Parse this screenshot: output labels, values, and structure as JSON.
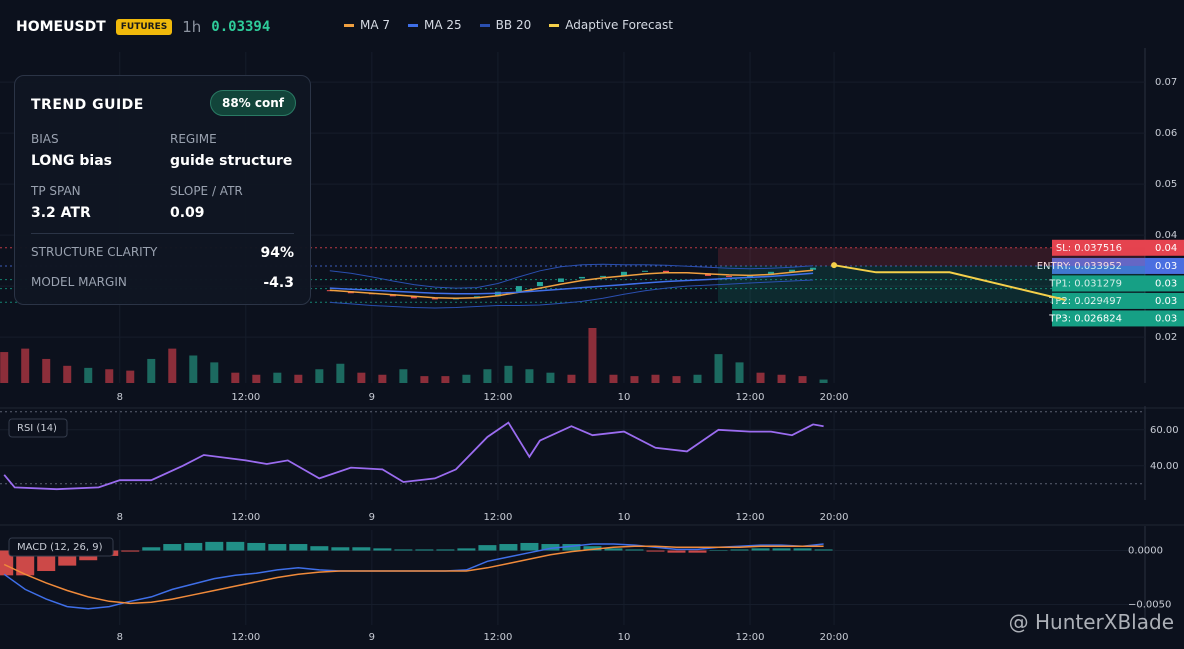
{
  "header": {
    "symbol": "HOMEUSDT",
    "badge": "FUTURES",
    "interval": "1h",
    "price": "0.03394"
  },
  "guide": {
    "title": "TREND GUIDE",
    "confidence": "88% conf",
    "fields": [
      {
        "label": "BIAS",
        "value": "LONG bias"
      },
      {
        "label": "REGIME",
        "value": "guide structure"
      },
      {
        "label": "TP SPAN",
        "value": "3.2 ATR"
      },
      {
        "label": "SLOPE / ATR",
        "value": "0.09"
      }
    ],
    "metrics": [
      {
        "label": "STRUCTURE CLARITY",
        "value": "94%"
      },
      {
        "label": "MODEL MARGIN",
        "value": "-4.3"
      }
    ]
  },
  "watermark": "@ HunterXBlade",
  "chart_data": [
    {
      "type": "candlestick",
      "xlim": [
        -11.4,
        97.6
      ],
      "ylim": [
        0.011,
        0.0759
      ],
      "grid": true,
      "xticks": [
        {
          "value": 0,
          "label": "8"
        },
        {
          "value": 12,
          "label": "12:00"
        },
        {
          "value": 24,
          "label": "9"
        },
        {
          "value": 36,
          "label": "12:00"
        },
        {
          "value": 48,
          "label": "10"
        },
        {
          "value": 60,
          "label": "12:00"
        },
        {
          "value": 68,
          "label": "20:00"
        }
      ],
      "yticks": [
        0.07,
        0.06,
        0.05,
        0.04,
        0.03,
        0.02
      ],
      "x": [
        20,
        22,
        24,
        26,
        28,
        30,
        32,
        34,
        36,
        38,
        40,
        42,
        44,
        46,
        48,
        50,
        52,
        54,
        56,
        58,
        60,
        62,
        64,
        66
      ],
      "open": [
        0.0292,
        0.029,
        0.0286,
        0.0284,
        0.028,
        0.0276,
        0.0274,
        0.0276,
        0.028,
        0.0289,
        0.03,
        0.0308,
        0.0315,
        0.0318,
        0.032,
        0.0328,
        0.033,
        0.0327,
        0.0325,
        0.032,
        0.0318,
        0.0322,
        0.0328,
        0.0332
      ],
      "close": [
        0.029,
        0.0286,
        0.0284,
        0.028,
        0.0276,
        0.0274,
        0.0276,
        0.028,
        0.0289,
        0.03,
        0.0308,
        0.0315,
        0.0318,
        0.032,
        0.0328,
        0.033,
        0.0327,
        0.0325,
        0.032,
        0.0318,
        0.0322,
        0.0328,
        0.0332,
        0.0336
      ],
      "colors": {
        "up": "#26a69a",
        "down": "#ef5350"
      },
      "series": [
        {
          "name": "MA 7",
          "color": "#f0a040",
          "values": [
            0.0292,
            0.0289,
            0.0286,
            0.0283,
            0.028,
            0.0277,
            0.0276,
            0.0277,
            0.0281,
            0.0288,
            0.0296,
            0.0304,
            0.0311,
            0.0316,
            0.032,
            0.0324,
            0.0326,
            0.0326,
            0.0324,
            0.0322,
            0.0321,
            0.0323,
            0.0327,
            0.0331
          ]
        },
        {
          "name": "MA 25",
          "color": "#3f6fe8",
          "values": [
            0.0296,
            0.0294,
            0.0292,
            0.029,
            0.0288,
            0.0286,
            0.0285,
            0.0285,
            0.0286,
            0.0288,
            0.0291,
            0.0294,
            0.0297,
            0.03,
            0.0303,
            0.0306,
            0.0309,
            0.0311,
            0.0313,
            0.0315,
            0.0317,
            0.0319,
            0.0322,
            0.0325
          ]
        },
        {
          "name": "BB 20",
          "color": "#2a4fb0",
          "values": [
            0.033,
            0.0325,
            0.0318,
            0.031,
            0.0303,
            0.0298,
            0.0296,
            0.0297,
            0.0305,
            0.0318,
            0.033,
            0.0338,
            0.0342,
            0.0343,
            0.0342,
            0.0342,
            0.0341,
            0.0339,
            0.0337,
            0.0335,
            0.0334,
            0.0335,
            0.0337,
            0.034
          ],
          "lower": [
            0.0268,
            0.0265,
            0.0262,
            0.026,
            0.0258,
            0.0257,
            0.0258,
            0.026,
            0.0262,
            0.0262,
            0.0263,
            0.0266,
            0.027,
            0.0276,
            0.0284,
            0.0291,
            0.0296,
            0.03,
            0.0302,
            0.0304,
            0.0306,
            0.0308,
            0.031,
            0.0312
          ]
        },
        {
          "name": "Adaptive Forecast",
          "color": "#f5d04a",
          "x": [
            68,
            72,
            79,
            90
          ],
          "values": [
            0.0341,
            0.0327,
            0.0327,
            0.0273
          ]
        }
      ],
      "levels": [
        {
          "label": "SL: 0.037516",
          "value": 0.037516,
          "axis_label": "0.04",
          "color": "#e5434f"
        },
        {
          "label": "ENTRY: 0.033952",
          "value": 0.033952,
          "axis_label": "0.03",
          "color": "#4a6fe0"
        },
        {
          "label": "TP1: 0.031279",
          "value": 0.031279,
          "axis_label": "0.03",
          "color": "#16a085"
        },
        {
          "label": "TP2: 0.029497",
          "value": 0.029497,
          "axis_label": "0.03",
          "color": "#16a085"
        },
        {
          "label": "TP3: 0.026824",
          "value": 0.026824,
          "axis_label": "0.03",
          "color": "#16a085"
        }
      ],
      "volume": {
        "x": [
          -11,
          -9,
          -7,
          -5,
          -3,
          -1,
          1,
          3,
          5,
          7,
          9,
          11,
          13,
          15,
          17,
          19,
          21,
          23,
          25,
          27,
          29,
          31,
          33,
          35,
          37,
          39,
          41,
          43,
          45,
          47,
          49,
          51,
          53,
          55,
          57,
          59,
          61,
          63,
          65,
          67
        ],
        "values": [
          45,
          50,
          35,
          25,
          22,
          20,
          18,
          35,
          50,
          40,
          30,
          15,
          12,
          15,
          12,
          20,
          28,
          15,
          12,
          20,
          10,
          10,
          12,
          20,
          25,
          20,
          15,
          12,
          80,
          12,
          10,
          12,
          10,
          12,
          42,
          30,
          15,
          12,
          10,
          5
        ],
        "up": [
          false,
          false,
          false,
          false,
          true,
          false,
          false,
          true,
          false,
          true,
          true,
          false,
          false,
          true,
          false,
          true,
          true,
          false,
          false,
          true,
          false,
          false,
          true,
          true,
          true,
          true,
          true,
          false,
          false,
          false,
          false,
          false,
          false,
          true,
          true,
          true,
          false,
          false,
          false,
          true
        ],
        "colors": {
          "up": "#1c6a60",
          "down": "#8c2e3a"
        }
      }
    },
    {
      "type": "line",
      "title": "RSI (14)",
      "xlim": [
        -11.4,
        97.6
      ],
      "ylim": [
        21,
        71
      ],
      "bands": [
        30,
        70
      ],
      "xticks": [
        {
          "value": 0,
          "label": "8"
        },
        {
          "value": 12,
          "label": "12:00"
        },
        {
          "value": 24,
          "label": "9"
        },
        {
          "value": 36,
          "label": "12:00"
        },
        {
          "value": 48,
          "label": "10"
        },
        {
          "value": 60,
          "label": "12:00"
        },
        {
          "value": 68,
          "label": "20:00"
        }
      ],
      "yticks": [
        {
          "value": 60,
          "label": "60.00"
        },
        {
          "value": 40,
          "label": "40.00"
        }
      ],
      "x": [
        -11,
        -10,
        -6,
        -2,
        0,
        3,
        6,
        8,
        12,
        14,
        16,
        19,
        22,
        25,
        27,
        30,
        32,
        35,
        37,
        39,
        40,
        43,
        45,
        48,
        51,
        54,
        57,
        60,
        62,
        64,
        66,
        67
      ],
      "series": [
        {
          "color": "#9b6cf0",
          "values": [
            35,
            28,
            27,
            28,
            32,
            32,
            40,
            46,
            43,
            41,
            43,
            33,
            39,
            38,
            31,
            33,
            38,
            56,
            64,
            45,
            54,
            62,
            57,
            59,
            50,
            48,
            60,
            59,
            59,
            57,
            63,
            62
          ]
        }
      ]
    },
    {
      "type": "macd",
      "title": "MACD (12, 26, 9)",
      "xlim": [
        -11.4,
        97.6
      ],
      "ylim": [
        -0.0069,
        0.0019
      ],
      "xticks": [
        {
          "value": 0,
          "label": "8"
        },
        {
          "value": 12,
          "label": "12:00"
        },
        {
          "value": 24,
          "label": "9"
        },
        {
          "value": 36,
          "label": "12:00"
        },
        {
          "value": 48,
          "label": "10"
        },
        {
          "value": 60,
          "label": "12:00"
        },
        {
          "value": 68,
          "label": "20:00"
        }
      ],
      "yticks": [
        {
          "value": 0,
          "label": "0.0000"
        },
        {
          "value": -0.005,
          "label": "−0.0050"
        }
      ],
      "x": [
        -11,
        -9,
        -7,
        -5,
        -3,
        -1,
        1,
        3,
        5,
        7,
        9,
        11,
        13,
        15,
        17,
        19,
        21,
        23,
        25,
        27,
        29,
        31,
        33,
        35,
        37,
        39,
        41,
        43,
        45,
        47,
        49,
        51,
        53,
        55,
        57,
        59,
        61,
        63,
        65,
        67
      ],
      "histogram": [
        -0.0023,
        -0.0023,
        -0.0019,
        -0.0014,
        -0.0009,
        -0.0005,
        -0.0001,
        0.0003,
        0.0006,
        0.0007,
        0.0008,
        0.0008,
        0.0007,
        0.0006,
        0.0006,
        0.0004,
        0.0003,
        0.0003,
        0.0002,
        0.0001,
        0.0001,
        0.0001,
        0.0002,
        0.0005,
        0.0006,
        0.0007,
        0.0006,
        0.0006,
        0.0004,
        0.0002,
        0.0001,
        -0.0001,
        -0.0002,
        -0.0002,
        0,
        0.0001,
        0.0002,
        0.0002,
        0.0002,
        0.0001
      ],
      "histogram_colors": {
        "up": "#26a69a",
        "down": "#ef5350"
      },
      "series": [
        {
          "color": "#3f6fe8",
          "values": [
            -0.0022,
            -0.0036,
            -0.0045,
            -0.0052,
            -0.0054,
            -0.0052,
            -0.0047,
            -0.0043,
            -0.0036,
            -0.0031,
            -0.0026,
            -0.0023,
            -0.0021,
            -0.0018,
            -0.0016,
            -0.0018,
            -0.0019,
            -0.0019,
            -0.0019,
            -0.0019,
            -0.0019,
            -0.0019,
            -0.0018,
            -0.001,
            -0.0006,
            -0.0002,
            0.0002,
            0.0004,
            0.0006,
            0.0006,
            0.0005,
            0.0003,
            0.0001,
            0.0001,
            0.0003,
            0.0004,
            0.0005,
            0.0005,
            0.0004,
            0.0006
          ]
        },
        {
          "color": "#f08a3a",
          "values": [
            -0.0013,
            -0.0022,
            -0.003,
            -0.0037,
            -0.0043,
            -0.0047,
            -0.0049,
            -0.0048,
            -0.0045,
            -0.0041,
            -0.0037,
            -0.0033,
            -0.0029,
            -0.0025,
            -0.0022,
            -0.002,
            -0.0019,
            -0.0019,
            -0.0019,
            -0.0019,
            -0.0019,
            -0.0019,
            -0.0019,
            -0.0016,
            -0.0012,
            -0.0008,
            -0.0004,
            -0.0001,
            0.0001,
            0.0003,
            0.0004,
            0.0004,
            0.0003,
            0.0003,
            0.0003,
            0.0003,
            0.0004,
            0.0004,
            0.0004,
            0.0004
          ]
        }
      ]
    }
  ]
}
